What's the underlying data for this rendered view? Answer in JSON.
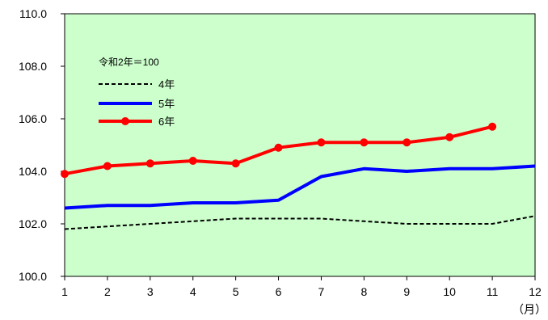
{
  "chart_data": {
    "type": "line",
    "title": "",
    "xlabel": "",
    "ylabel": "",
    "x_unit_label": "（月）",
    "categories": [
      "1",
      "2",
      "3",
      "4",
      "5",
      "6",
      "7",
      "8",
      "9",
      "10",
      "11",
      "12"
    ],
    "ylim": [
      100.0,
      110.0
    ],
    "yticks": [
      "100.0",
      "102.0",
      "104.0",
      "106.0",
      "108.0",
      "110.0"
    ],
    "grid": false,
    "plot_background": "#ccffcc",
    "legend": {
      "placement": "top-left",
      "note": "令和2年＝100"
    },
    "series": [
      {
        "name": "4年",
        "color": "#000000",
        "style": "dashed",
        "markers": false,
        "values": [
          101.8,
          101.9,
          102.0,
          102.1,
          102.2,
          102.2,
          102.2,
          102.1,
          102.0,
          102.0,
          102.0,
          102.3
        ]
      },
      {
        "name": "5年",
        "color": "#0000ff",
        "style": "solid",
        "markers": false,
        "values": [
          102.6,
          102.7,
          102.7,
          102.8,
          102.8,
          102.9,
          103.8,
          104.1,
          104.0,
          104.1,
          104.1,
          104.2
        ]
      },
      {
        "name": "6年",
        "color": "#ff0000",
        "style": "solid",
        "markers": true,
        "values": [
          103.9,
          104.2,
          104.3,
          104.4,
          104.3,
          104.9,
          105.1,
          105.1,
          105.1,
          105.3,
          105.7,
          null
        ]
      }
    ]
  }
}
